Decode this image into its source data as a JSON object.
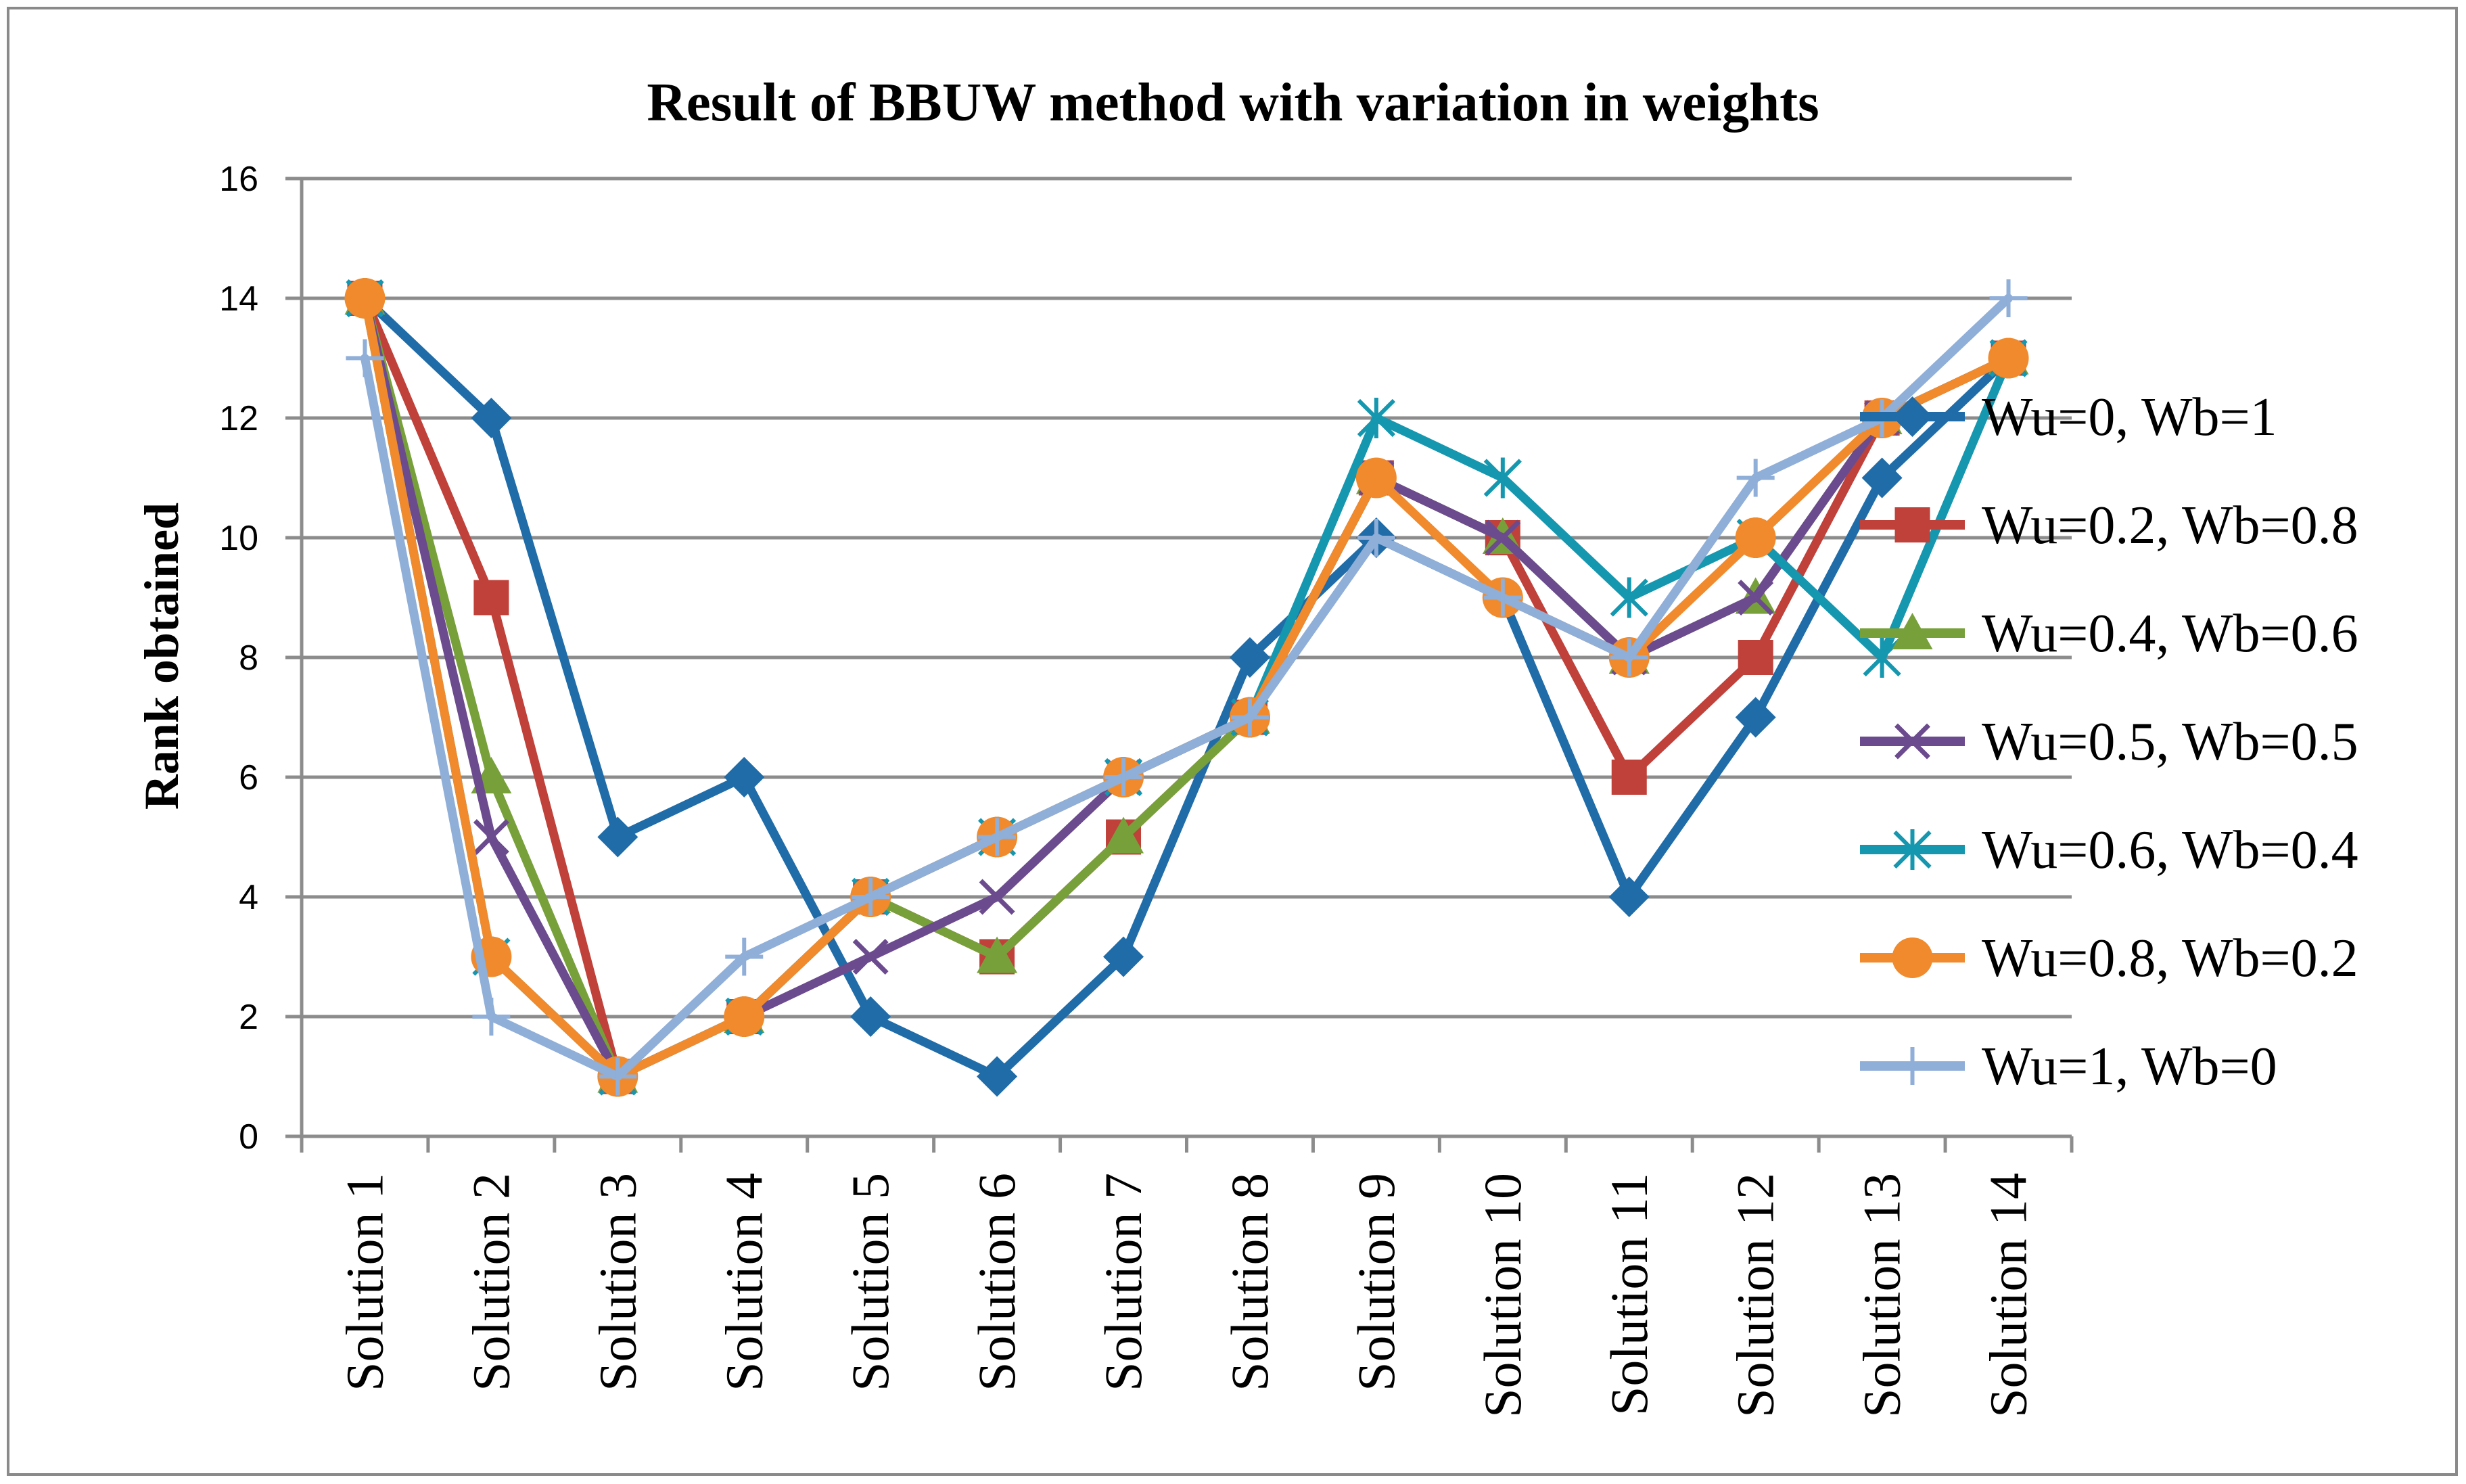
{
  "chart_data": {
    "type": "line",
    "title": "Result of BBUW  method with variation in weights",
    "xlabel": "",
    "ylabel": "Rank obtained",
    "ylim": [
      0,
      16
    ],
    "yticks": [
      0,
      2,
      4,
      6,
      8,
      10,
      12,
      14,
      16
    ],
    "grid": true,
    "legend_position": "right",
    "categories": [
      "Solution 1",
      "Solution 2",
      "Solution 3",
      "Solution 4",
      "Solution 5",
      "Solution 6",
      "Solution 7",
      "Solution 8",
      "Solution 9",
      "Solution 10",
      "Solution 11",
      "Solution 12",
      "Solution 13",
      "Solution 14"
    ],
    "series": [
      {
        "name": "Wu=0, Wb=1",
        "color": "#1F6CA8",
        "marker": "diamond",
        "values": [
          14,
          12,
          5,
          6,
          2,
          1,
          3,
          8,
          10,
          9,
          4,
          7,
          11,
          13
        ]
      },
      {
        "name": "Wu=0.2, Wb=0.8",
        "color": "#C0403A",
        "marker": "square",
        "values": [
          14,
          9,
          1,
          2,
          4,
          3,
          5,
          7,
          11,
          10,
          6,
          8,
          12,
          13
        ]
      },
      {
        "name": "Wu=0.4, Wb=0.6",
        "color": "#77A03A",
        "marker": "triangle",
        "values": [
          14,
          6,
          1,
          2,
          4,
          3,
          5,
          7,
          11,
          10,
          8,
          9,
          12,
          13
        ]
      },
      {
        "name": "Wu=0.5, Wb=0.5",
        "color": "#6B4A8E",
        "marker": "x",
        "values": [
          14,
          5,
          1,
          2,
          3,
          4,
          6,
          7,
          11,
          10,
          8,
          9,
          12,
          13
        ]
      },
      {
        "name": "Wu=0.6, Wb=0.4",
        "color": "#1497AF",
        "marker": "asterisk",
        "values": [
          14,
          3,
          1,
          2,
          4,
          5,
          6,
          7,
          12,
          11,
          9,
          10,
          8,
          13
        ]
      },
      {
        "name": "Wu=0.8, Wb=0.2",
        "color": "#F08A2C",
        "marker": "circle",
        "values": [
          14,
          3,
          1,
          2,
          4,
          5,
          6,
          7,
          11,
          9,
          8,
          10,
          12,
          13
        ]
      },
      {
        "name": "Wu=1, Wb=0",
        "color": "#8FAED8",
        "marker": "plus",
        "values": [
          13,
          2,
          1,
          3,
          4,
          5,
          6,
          7,
          10,
          9,
          8,
          11,
          12,
          14
        ]
      }
    ]
  }
}
